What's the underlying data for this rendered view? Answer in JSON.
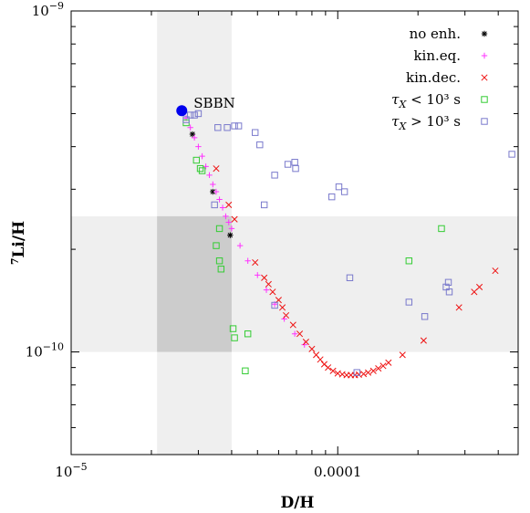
{
  "chart_data": {
    "type": "scatter",
    "xlabel": "D/H",
    "ylabel": "7Li/H",
    "x_scale": "log",
    "y_scale": "log",
    "xlim": [
      1e-05,
      0.000475
    ],
    "ylim": [
      5e-11,
      1e-09
    ],
    "x_ticks": [
      {
        "value": 1e-05,
        "label": "10",
        "sup": "−5"
      },
      {
        "value": 0.0001,
        "label": "0.0001",
        "sup": ""
      }
    ],
    "y_ticks": [
      {
        "value": 1e-09,
        "label": "10",
        "sup": "−9"
      },
      {
        "value": 1e-10,
        "label": "10",
        "sup": "−10"
      }
    ],
    "shaded_bands": {
      "x_band": [
        2.1e-05,
        4e-05
      ],
      "y_band": [
        1e-10,
        2.5e-10
      ]
    },
    "annotations": [
      {
        "text": "SBBN",
        "x": 2.6e-05,
        "y": 5.1e-10
      }
    ],
    "legend_position": "top-right",
    "colors": {
      "no_enh": "#000000",
      "kin_eq": "#ff33ff",
      "kin_dec": "#ee1111",
      "tau_lt": "#33cc33",
      "tau_gt": "#7a7acc",
      "sbbn": "#0000ee",
      "band": "#efefef",
      "overlap": "#cccccc"
    },
    "series": [
      {
        "name": "no enh.",
        "marker": "star",
        "color_key": "no_enh",
        "points": [
          [
            2.85e-05,
            4.35e-10
          ],
          [
            3.4e-05,
            2.95e-10
          ],
          [
            3.95e-05,
            2.2e-10
          ]
        ]
      },
      {
        "name": "kin.eq.",
        "marker": "plus",
        "color_key": "kin_eq",
        "points": [
          [
            2.7e-05,
            4.85e-10
          ],
          [
            2.8e-05,
            4.55e-10
          ],
          [
            2.9e-05,
            4.25e-10
          ],
          [
            3e-05,
            4e-10
          ],
          [
            3.1e-05,
            3.75e-10
          ],
          [
            3.2e-05,
            3.5e-10
          ],
          [
            3.3e-05,
            3.3e-10
          ],
          [
            3.4e-05,
            3.1e-10
          ],
          [
            3.5e-05,
            2.95e-10
          ],
          [
            3.6e-05,
            2.8e-10
          ],
          [
            3.7e-05,
            2.65e-10
          ],
          [
            3.8e-05,
            2.5e-10
          ],
          [
            3.9e-05,
            2.4e-10
          ],
          [
            4e-05,
            2.3e-10
          ],
          [
            4.3e-05,
            2.05e-10
          ],
          [
            4.6e-05,
            1.85e-10
          ],
          [
            5e-05,
            1.68e-10
          ],
          [
            5.4e-05,
            1.52e-10
          ],
          [
            5.8e-05,
            1.38e-10
          ],
          [
            6.3e-05,
            1.25e-10
          ],
          [
            6.9e-05,
            1.13e-10
          ],
          [
            7.5e-05,
            1.05e-10
          ]
        ]
      },
      {
        "name": "kin.dec.",
        "marker": "cross",
        "color_key": "kin_dec",
        "points": [
          [
            3.5e-05,
            3.45e-10
          ],
          [
            3.9e-05,
            2.7e-10
          ],
          [
            4.1e-05,
            2.45e-10
          ],
          [
            4.9e-05,
            1.83e-10
          ],
          [
            5.3e-05,
            1.65e-10
          ],
          [
            5.5e-05,
            1.58e-10
          ],
          [
            5.7e-05,
            1.5e-10
          ],
          [
            6e-05,
            1.42e-10
          ],
          [
            6.2e-05,
            1.35e-10
          ],
          [
            6.4e-05,
            1.28e-10
          ],
          [
            6.8e-05,
            1.2e-10
          ],
          [
            7.2e-05,
            1.13e-10
          ],
          [
            7.6e-05,
            1.07e-10
          ],
          [
            8e-05,
            1.02e-10
          ],
          [
            8.3e-05,
            9.8e-11
          ],
          [
            8.6e-05,
            9.5e-11
          ],
          [
            8.9e-05,
            9.2e-11
          ],
          [
            9.2e-05,
            9e-11
          ],
          [
            9.6e-05,
            8.8e-11
          ],
          [
            0.0001,
            8.65e-11
          ],
          [
            0.000104,
            8.6e-11
          ],
          [
            0.000108,
            8.55e-11
          ],
          [
            0.000112,
            8.55e-11
          ],
          [
            0.000116,
            8.55e-11
          ],
          [
            0.00012,
            8.58e-11
          ],
          [
            0.000125,
            8.62e-11
          ],
          [
            0.00013,
            8.7e-11
          ],
          [
            0.000136,
            8.8e-11
          ],
          [
            0.000142,
            8.95e-11
          ],
          [
            0.000148,
            9.1e-11
          ],
          [
            0.000155,
            9.3e-11
          ],
          [
            0.000175,
            9.8e-11
          ],
          [
            0.00021,
            1.08e-10
          ],
          [
            0.000285,
            1.35e-10
          ],
          [
            0.000325,
            1.5e-10
          ],
          [
            0.00034,
            1.55e-10
          ],
          [
            0.00039,
            1.73e-10
          ]
        ]
      },
      {
        "name": "τX < 10³ s",
        "marker": "square",
        "color_key": "tau_lt",
        "points": [
          [
            2.7e-05,
            4.7e-10
          ],
          [
            2.95e-05,
            3.65e-10
          ],
          [
            3.05e-05,
            3.45e-10
          ],
          [
            3.1e-05,
            3.4e-10
          ],
          [
            3.6e-05,
            2.3e-10
          ],
          [
            3.5e-05,
            2.05e-10
          ],
          [
            3.6e-05,
            1.85e-10
          ],
          [
            3.65e-05,
            1.75e-10
          ],
          [
            4.05e-05,
            1.17e-10
          ],
          [
            4.1e-05,
            1.1e-10
          ],
          [
            4.6e-05,
            1.13e-10
          ],
          [
            4.5e-05,
            8.8e-11
          ],
          [
            0.000185,
            1.85e-10
          ],
          [
            0.000245,
            2.3e-10
          ]
        ]
      },
      {
        "name": "τX > 10³ s",
        "marker": "square",
        "color_key": "tau_gt",
        "points": [
          [
            2.7e-05,
            4.8e-10
          ],
          [
            2.8e-05,
            4.95e-10
          ],
          [
            2.9e-05,
            4.95e-10
          ],
          [
            3e-05,
            5e-10
          ],
          [
            3.55e-05,
            4.55e-10
          ],
          [
            3.85e-05,
            4.55e-10
          ],
          [
            4.1e-05,
            4.6e-10
          ],
          [
            4.25e-05,
            4.6e-10
          ],
          [
            4.9e-05,
            4.4e-10
          ],
          [
            5.1e-05,
            4.05e-10
          ],
          [
            5.8e-05,
            3.3e-10
          ],
          [
            6.5e-05,
            3.55e-10
          ],
          [
            6.9e-05,
            3.6e-10
          ],
          [
            6.95e-05,
            3.45e-10
          ],
          [
            3.45e-05,
            2.7e-10
          ],
          [
            5.3e-05,
            2.7e-10
          ],
          [
            9.5e-05,
            2.85e-10
          ],
          [
            0.000101,
            3.05e-10
          ],
          [
            0.000106,
            2.95e-10
          ],
          [
            0.000111,
            1.65e-10
          ],
          [
            0.000185,
            1.4e-10
          ],
          [
            0.000212,
            1.27e-10
          ],
          [
            0.000255,
            1.55e-10
          ],
          [
            0.00026,
            1.6e-10
          ],
          [
            0.000262,
            1.5e-10
          ],
          [
            5.8e-05,
            1.37e-10
          ],
          [
            0.000118,
            8.7e-11
          ],
          [
            0.00045,
            3.8e-10
          ]
        ]
      }
    ],
    "sbbn_point": [
      2.6e-05,
      5.1e-10
    ]
  }
}
